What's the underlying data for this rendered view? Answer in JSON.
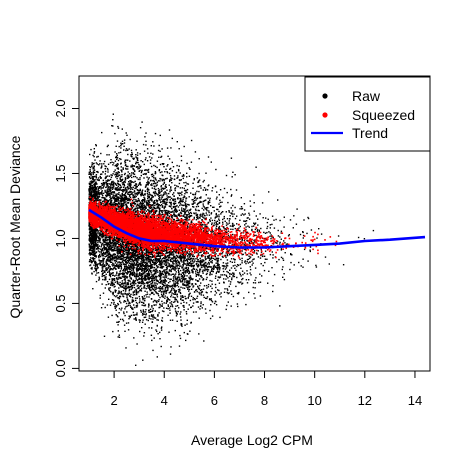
{
  "chart_data": {
    "type": "scatter",
    "title": "",
    "xlabel": "Average Log2 CPM",
    "ylabel": "Quarter-Root Mean Deviance",
    "xlim": [
      0.6,
      14.6
    ],
    "ylim": [
      -0.02,
      2.25
    ],
    "x_ticks": [
      2,
      4,
      6,
      8,
      10,
      12,
      14
    ],
    "y_ticks": [
      0.0,
      0.5,
      1.0,
      1.5,
      2.0
    ],
    "x_tick_labels": [
      "2",
      "4",
      "6",
      "8",
      "10",
      "12",
      "14"
    ],
    "y_tick_labels": [
      "0.0",
      "0.5",
      "1.0",
      "1.5",
      "2.0"
    ],
    "grid": false,
    "legend_position": "top-right",
    "series": [
      {
        "name": "Raw",
        "kind": "points",
        "color": "#000000",
        "approx_count": 9000,
        "center_curve_x": [
          1.0,
          2.0,
          3.0,
          4.0,
          5.0,
          6.0,
          7.0,
          8.0,
          9.0,
          10.0,
          12.0,
          14.0
        ],
        "center_curve_y": [
          1.18,
          1.05,
          0.98,
          0.96,
          0.95,
          0.93,
          0.93,
          0.94,
          0.95,
          0.96,
          0.98,
          1.0
        ],
        "spread_x": [
          1.0,
          2.0,
          3.0,
          4.0,
          5.0,
          6.0,
          7.0,
          8.0,
          9.0,
          10.0,
          11.0,
          14.0
        ],
        "spread_y": [
          0.16,
          0.28,
          0.3,
          0.28,
          0.26,
          0.22,
          0.2,
          0.17,
          0.14,
          0.12,
          0.1,
          0.08
        ],
        "x_range": [
          1.0,
          14.2
        ],
        "y_range": [
          0.0,
          2.2
        ]
      },
      {
        "name": "Squeezed",
        "kind": "points",
        "color": "#ff0000",
        "approx_count": 6000,
        "center_curve_x": [
          1.0,
          2.0,
          3.0,
          4.0,
          5.0,
          6.0,
          7.0,
          8.0,
          9.0,
          10.0,
          12.0,
          14.0
        ],
        "center_curve_y": [
          1.2,
          1.12,
          1.06,
          1.03,
          1.01,
          0.99,
          0.97,
          0.97,
          0.97,
          0.98,
          0.99,
          1.0
        ],
        "spread_x": [
          1.0,
          3.0,
          6.0,
          9.0,
          14.0
        ],
        "spread_y": [
          0.04,
          0.06,
          0.05,
          0.04,
          0.03
        ],
        "x_range": [
          1.0,
          11.5
        ],
        "y_range": [
          0.85,
          1.33
        ]
      },
      {
        "name": "Trend",
        "kind": "line",
        "color": "#0000ff",
        "x": [
          1.0,
          1.5,
          2.0,
          2.5,
          3.0,
          3.5,
          4.0,
          5.0,
          6.0,
          7.0,
          8.0,
          9.0,
          10.0,
          11.0,
          12.0,
          13.0,
          14.4
        ],
        "y": [
          1.22,
          1.16,
          1.09,
          1.04,
          1.0,
          0.98,
          0.98,
          0.96,
          0.94,
          0.93,
          0.93,
          0.94,
          0.95,
          0.96,
          0.98,
          0.99,
          1.01
        ]
      }
    ]
  }
}
